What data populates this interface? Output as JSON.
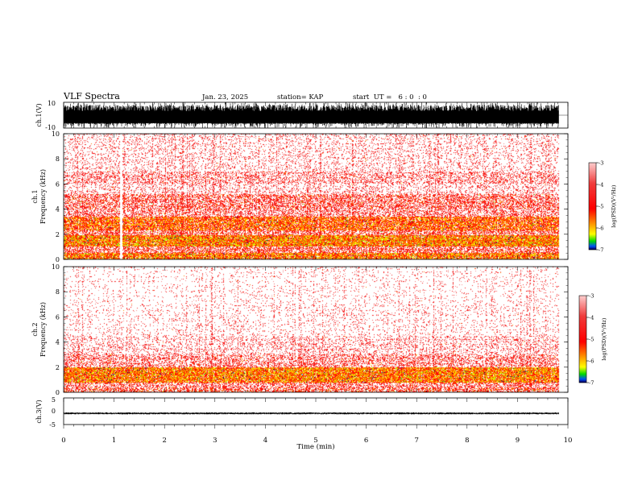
{
  "header": {
    "title": "VLF Spectra",
    "date": "Jan. 23, 2025",
    "station": "station= KAP",
    "start": "start  UT =   6 : 0  : 0"
  },
  "chart_data": [
    {
      "type": "line",
      "id": "ch1-waveform",
      "ylabel": "ch.1(V)",
      "ylim": [
        -10,
        10
      ],
      "yticks": [
        "10",
        "-10"
      ],
      "xlim": [
        0,
        10
      ],
      "signal": {
        "min": -10,
        "max": 10,
        "typical_min": -6,
        "typical_max": 8,
        "color": "#000000"
      }
    },
    {
      "type": "heatmap",
      "id": "ch1-spectrogram",
      "ylabel": "ch.1\nFrequency (kHz)",
      "ylim": [
        0,
        10
      ],
      "yticks": [
        "0",
        "2",
        "4",
        "6",
        "8",
        "10"
      ],
      "xlim": [
        0,
        10
      ],
      "data_end_min": 9.82,
      "gap_min": 1.13,
      "bands": [
        {
          "f0": 0.0,
          "f1": 0.5,
          "level": 0.78
        },
        {
          "f0": 0.5,
          "f1": 1.0,
          "level": 0.45
        },
        {
          "f0": 1.0,
          "f1": 1.9,
          "level": 0.82
        },
        {
          "f0": 1.9,
          "f1": 2.3,
          "level": 0.45
        },
        {
          "f0": 2.3,
          "f1": 3.4,
          "level": 0.72
        },
        {
          "f0": 3.4,
          "f1": 4.0,
          "level": 0.35
        },
        {
          "f0": 4.0,
          "f1": 5.2,
          "level": 0.42
        },
        {
          "f0": 5.2,
          "f1": 6.0,
          "level": 0.18
        },
        {
          "f0": 6.0,
          "f1": 7.0,
          "level": 0.28
        },
        {
          "f0": 7.0,
          "f1": 10.0,
          "level": 0.14
        }
      ],
      "colorbar": {
        "label": "log(PSD)(V²/Hz)",
        "range": [
          -7,
          -3
        ],
        "ticks": [
          "-3",
          "-4",
          "-5",
          "-6",
          "-7"
        ]
      }
    },
    {
      "type": "heatmap",
      "id": "ch2-spectrogram",
      "ylabel": "ch.2\nFrequency (kHz)",
      "ylim": [
        0,
        10
      ],
      "yticks": [
        "0",
        "2",
        "4",
        "6",
        "8",
        "10"
      ],
      "xlim": [
        0,
        10
      ],
      "data_end_min": 9.82,
      "bands": [
        {
          "f0": 0.0,
          "f1": 0.3,
          "level": 0.5
        },
        {
          "f0": 0.3,
          "f1": 0.8,
          "level": 0.38
        },
        {
          "f0": 0.8,
          "f1": 2.0,
          "level": 0.8
        },
        {
          "f0": 2.0,
          "f1": 3.0,
          "level": 0.34
        },
        {
          "f0": 3.0,
          "f1": 4.5,
          "level": 0.18
        },
        {
          "f0": 4.5,
          "f1": 7.0,
          "level": 0.09
        },
        {
          "f0": 7.0,
          "f1": 10.0,
          "level": 0.06
        }
      ],
      "colorbar": {
        "label": "log(PSD)(V²/Hz)",
        "range": [
          -7,
          -3
        ],
        "ticks": [
          "-3",
          "-4",
          "-5",
          "-6",
          "-7"
        ]
      }
    },
    {
      "type": "line",
      "id": "ch3-waveform",
      "ylabel": "ch.3(V)",
      "ylim": [
        -5,
        5
      ],
      "yticks": [
        "5",
        "0",
        "-5"
      ],
      "xlim": [
        0,
        10
      ],
      "xticks": [
        "0",
        "1",
        "2",
        "3",
        "4",
        "5",
        "6",
        "7",
        "8",
        "9",
        "10"
      ],
      "xlabel": "Time (min)",
      "signal": {
        "min": -1.2,
        "max": -0.4,
        "color": "#000000"
      }
    }
  ]
}
